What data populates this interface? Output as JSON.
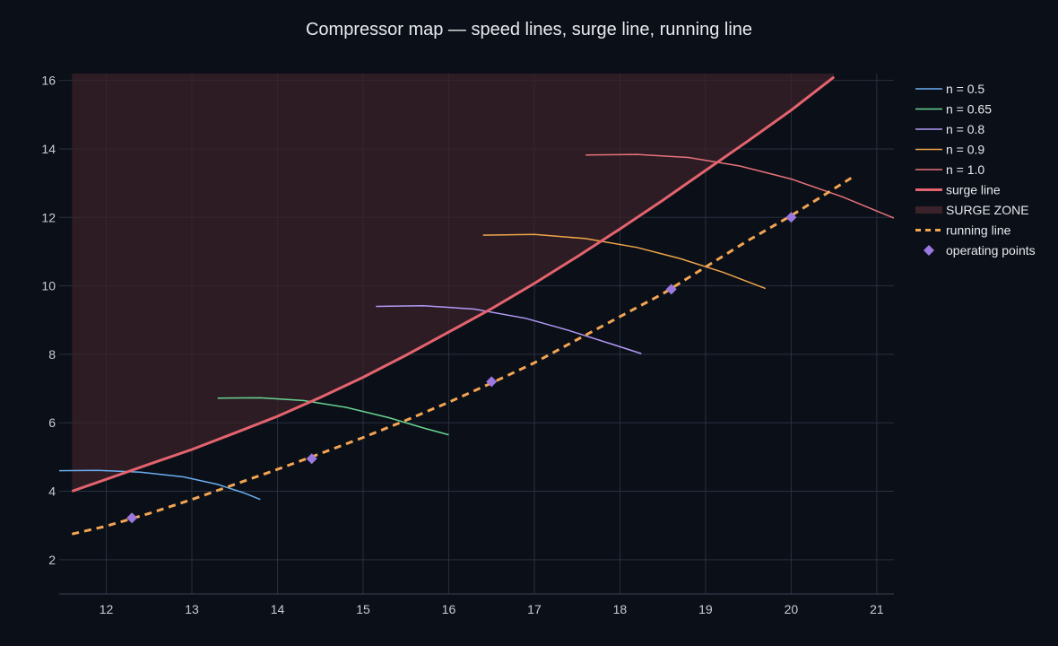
{
  "chart_data": {
    "type": "line",
    "title": "Compressor map — speed lines, surge line, running line",
    "xlabel": "",
    "ylabel": "",
    "xlim": [
      11.45,
      21.2
    ],
    "ylim": [
      1.0,
      16.2
    ],
    "xticks": [
      12,
      13,
      14,
      15,
      16,
      17,
      18,
      19,
      20,
      21
    ],
    "yticks": [
      2,
      4,
      6,
      8,
      10,
      12,
      14,
      16
    ],
    "grid": true,
    "legend_position": "right",
    "series": [
      {
        "name": "n = 0.5",
        "kind": "speed-line",
        "color": "#6aaef0",
        "x": [
          11.45,
          11.9,
          12.4,
          12.9,
          13.3,
          13.6,
          13.8
        ],
        "y": [
          4.6,
          4.61,
          4.56,
          4.42,
          4.2,
          3.96,
          3.76
        ]
      },
      {
        "name": "n = 0.65",
        "kind": "speed-line",
        "color": "#68d492",
        "x": [
          13.3,
          13.8,
          14.3,
          14.8,
          15.3,
          15.7,
          16.0
        ],
        "y": [
          6.72,
          6.73,
          6.65,
          6.45,
          6.15,
          5.85,
          5.65
        ]
      },
      {
        "name": "n = 0.8",
        "kind": "speed-line",
        "color": "#b39af7",
        "x": [
          15.15,
          15.7,
          16.3,
          16.9,
          17.4,
          17.9,
          18.25
        ],
        "y": [
          9.4,
          9.42,
          9.32,
          9.05,
          8.7,
          8.3,
          8.02
        ]
      },
      {
        "name": "n = 0.9",
        "kind": "speed-line",
        "color": "#f0a54a",
        "x": [
          16.4,
          17.0,
          17.6,
          18.2,
          18.7,
          19.2,
          19.7
        ],
        "y": [
          11.48,
          11.5,
          11.38,
          11.12,
          10.8,
          10.4,
          9.92
        ]
      },
      {
        "name": "n = 1.0",
        "kind": "speed-line",
        "color": "#e8727a",
        "x": [
          17.6,
          18.2,
          18.8,
          19.4,
          20.0,
          20.6,
          21.2
        ],
        "y": [
          13.82,
          13.84,
          13.75,
          13.5,
          13.12,
          12.6,
          11.98
        ]
      },
      {
        "name": "surge line",
        "kind": "surge",
        "color": "#e3636e",
        "x": [
          11.6,
          12.0,
          12.5,
          13.0,
          13.5,
          14.0,
          14.5,
          15.0,
          15.5,
          16.0,
          16.5,
          17.0,
          17.5,
          18.0,
          18.5,
          19.0,
          19.5,
          20.0,
          20.5
        ],
        "y": [
          4.0,
          4.35,
          4.79,
          5.22,
          5.7,
          6.19,
          6.74,
          7.33,
          7.97,
          8.65,
          9.33,
          10.07,
          10.85,
          11.66,
          12.5,
          13.37,
          14.24,
          15.13,
          16.1
        ]
      },
      {
        "name": "SURGE ZONE",
        "kind": "zone",
        "color": "#3a222a"
      },
      {
        "name": "running line",
        "kind": "running",
        "color": "#f3a553",
        "x": [
          11.6,
          12.0,
          12.5,
          13.0,
          13.5,
          14.0,
          14.5,
          15.0,
          15.5,
          16.0,
          16.5,
          17.0,
          17.5,
          18.0,
          18.5,
          19.0,
          19.5,
          20.0,
          20.7
        ],
        "y": [
          2.75,
          2.98,
          3.35,
          3.76,
          4.2,
          4.64,
          5.1,
          5.57,
          6.07,
          6.6,
          7.16,
          7.75,
          8.43,
          9.1,
          9.77,
          10.55,
          11.33,
          12.05,
          13.15
        ]
      },
      {
        "name": "operating points",
        "kind": "points",
        "color": "#9a78e0",
        "x": [
          12.3,
          14.4,
          16.5,
          18.6,
          20.0
        ],
        "y": [
          3.22,
          4.95,
          7.2,
          9.9,
          12.0
        ]
      }
    ]
  }
}
